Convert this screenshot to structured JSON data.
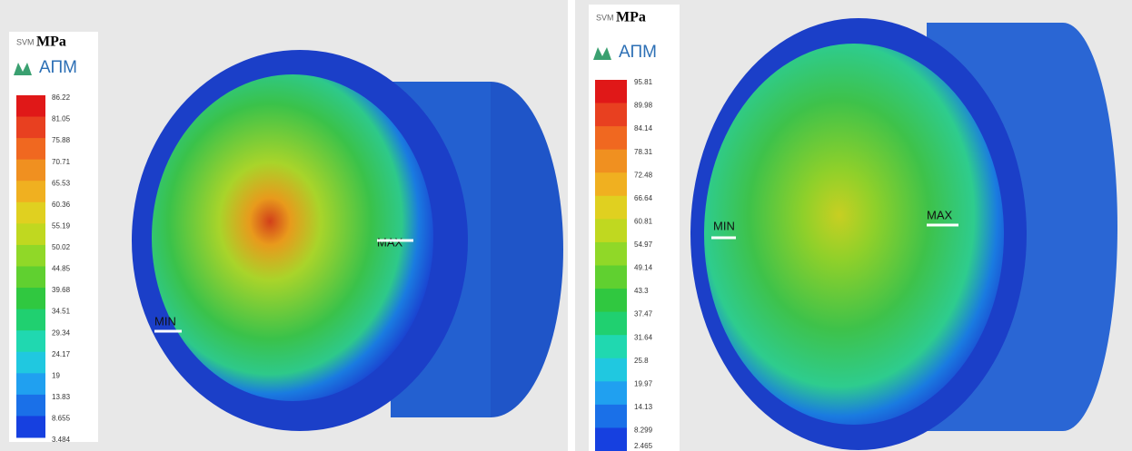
{
  "panels": [
    {
      "legend": {
        "quantity": "SVM",
        "unit": "MPa",
        "logo": "АПМ",
        "values": [
          "86.22",
          "81.05",
          "75.88",
          "70.71",
          "65.53",
          "60.36",
          "55.19",
          "50.02",
          "44.85",
          "39.68",
          "34.51",
          "29.34",
          "24.17",
          "19",
          "13.83",
          "8.655",
          "3.484"
        ]
      },
      "max_label": "MAX",
      "min_label": "MIN"
    },
    {
      "legend": {
        "quantity": "SVM",
        "unit": "MPa",
        "logo": "АПМ",
        "values": [
          "95.81",
          "89.98",
          "84.14",
          "78.31",
          "72.48",
          "66.64",
          "60.81",
          "54.97",
          "49.14",
          "43.3",
          "37.47",
          "31.64",
          "25.8",
          "19.97",
          "14.13",
          "8.299",
          "2.465"
        ]
      },
      "max_label": "MAX",
      "min_label": "MIN"
    }
  ]
}
